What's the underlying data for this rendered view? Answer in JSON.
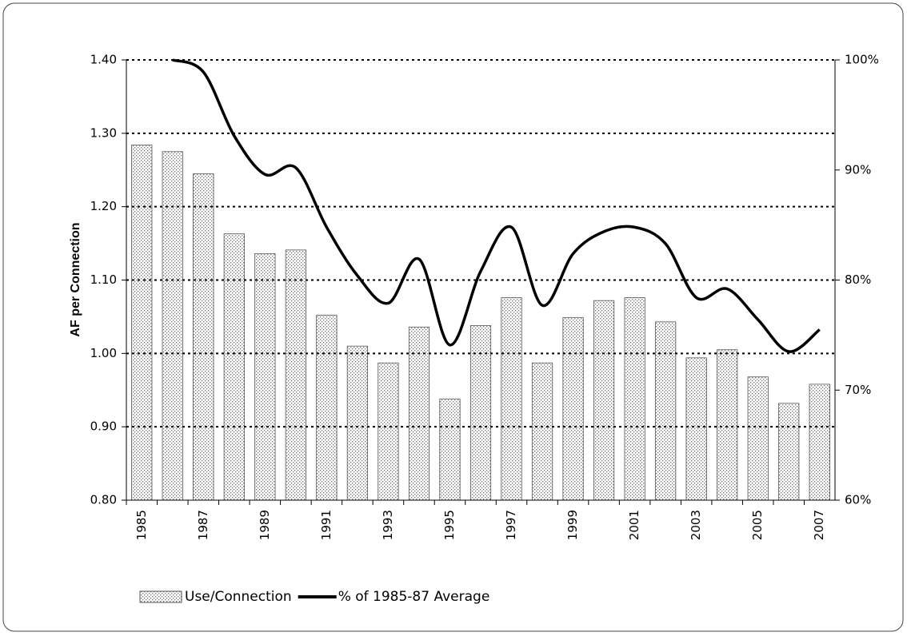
{
  "chart_data": {
    "type": "bar-line",
    "y_label": "AF per Connection",
    "categories": [
      "1985",
      null,
      "1987",
      null,
      "1989",
      null,
      "1991",
      null,
      "1993",
      null,
      "1995",
      null,
      "1997",
      null,
      "1999",
      null,
      "2001",
      null,
      "2003",
      null,
      "2005",
      null,
      "2007"
    ],
    "series": [
      {
        "name": "Use/Connection",
        "type": "bar",
        "color": "#707070",
        "values": [
          1.284,
          1.275,
          1.245,
          1.163,
          1.136,
          1.141,
          1.052,
          1.01,
          0.987,
          1.036,
          0.938,
          1.038,
          1.076,
          0.987,
          1.049,
          1.072,
          1.076,
          1.043,
          0.994,
          1.005,
          0.968,
          0.932,
          0.958
        ]
      },
      {
        "name": "% of 1985-87 Average",
        "type": "line",
        "color": "#000000",
        "axis": "y2",
        "values": [
          null,
          100,
          98.9,
          93.1,
          89.6,
          90.2,
          84.8,
          80.4,
          77.9,
          81.9,
          74.1,
          80.8,
          84.8,
          77.7,
          82.4,
          84.4,
          84.8,
          83.3,
          78.4,
          79.2,
          76.4,
          73.5,
          75.5
        ]
      }
    ],
    "ylim": [
      0.8,
      1.4
    ],
    "yticks": [
      {
        "value": 0.8,
        "label": "0.80"
      },
      {
        "value": 0.9,
        "label": "0.90"
      },
      {
        "value": 1.0,
        "label": "1.00"
      },
      {
        "value": 1.1,
        "label": "1.10"
      },
      {
        "value": 1.2,
        "label": "1.20"
      },
      {
        "value": 1.3,
        "label": "1.30"
      },
      {
        "value": 1.4,
        "label": "1.40"
      }
    ],
    "y2lim": [
      60,
      100
    ],
    "y2ticks": [
      {
        "value": 60,
        "label": "60%"
      },
      {
        "value": 70,
        "label": "70%"
      },
      {
        "value": 80,
        "label": "80%"
      },
      {
        "value": 90,
        "label": "90%"
      },
      {
        "value": 100,
        "label": "100%"
      }
    ],
    "grid": true,
    "legend": "bottom"
  }
}
